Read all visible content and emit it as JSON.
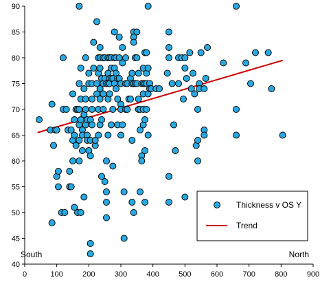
{
  "chart_data": {
    "type": "scatter",
    "title": "",
    "xlabel": "",
    "ylabel": "",
    "xlim": [
      0,
      900
    ],
    "ylim": [
      40,
      90
    ],
    "x_ticks": [
      0,
      100,
      200,
      300,
      400,
      500,
      600,
      700,
      800,
      900
    ],
    "y_ticks": [
      40,
      45,
      50,
      55,
      60,
      65,
      70,
      75,
      80,
      85,
      90
    ],
    "grid": false,
    "legend_position": "bottom-right",
    "annotations": {
      "left": "South",
      "right": "North"
    },
    "colors": {
      "points": "#29a9e1",
      "point_edge": "#000000",
      "trend": "#cc0000"
    },
    "series": [
      {
        "name": "Thickness v OS Y",
        "kind": "scatter",
        "points": [
          [
            45,
            68
          ],
          [
            80,
            66
          ],
          [
            85,
            71
          ],
          [
            85,
            48
          ],
          [
            90,
            63
          ],
          [
            95,
            66
          ],
          [
            100,
            57
          ],
          [
            100,
            66
          ],
          [
            105,
            55
          ],
          [
            105,
            58
          ],
          [
            115,
            50
          ],
          [
            120,
            80
          ],
          [
            120,
            70
          ],
          [
            125,
            50
          ],
          [
            130,
            70
          ],
          [
            135,
            66
          ],
          [
            140,
            58
          ],
          [
            140,
            55
          ],
          [
            145,
            55
          ],
          [
            145,
            66
          ],
          [
            150,
            73
          ],
          [
            150,
            64
          ],
          [
            150,
            60
          ],
          [
            155,
            51
          ],
          [
            155,
            68
          ],
          [
            155,
            65
          ],
          [
            160,
            70
          ],
          [
            160,
            63
          ],
          [
            165,
            50
          ],
          [
            165,
            70
          ],
          [
            170,
            90
          ],
          [
            170,
            75
          ],
          [
            170,
            70
          ],
          [
            170,
            67
          ],
          [
            170,
            64
          ],
          [
            170,
            60
          ],
          [
            175,
            78
          ],
          [
            175,
            72
          ],
          [
            175,
            68
          ],
          [
            175,
            50
          ],
          [
            180,
            66
          ],
          [
            180,
            65
          ],
          [
            180,
            62
          ],
          [
            185,
            74
          ],
          [
            185,
            69
          ],
          [
            185,
            53
          ],
          [
            190,
            80
          ],
          [
            190,
            72
          ],
          [
            190,
            70
          ],
          [
            190,
            67
          ],
          [
            195,
            68
          ],
          [
            195,
            65
          ],
          [
            195,
            64
          ],
          [
            200,
            77
          ],
          [
            200,
            75
          ],
          [
            200,
            62
          ],
          [
            205,
            68
          ],
          [
            205,
            64
          ],
          [
            205,
            61
          ],
          [
            205,
            44
          ],
          [
            205,
            42
          ],
          [
            210,
            75
          ],
          [
            210,
            72
          ],
          [
            210,
            70
          ],
          [
            210,
            67
          ],
          [
            215,
            83
          ],
          [
            215,
            78
          ],
          [
            220,
            63
          ],
          [
            220,
            64
          ],
          [
            225,
            87
          ],
          [
            225,
            75
          ],
          [
            225,
            73
          ],
          [
            230,
            80
          ],
          [
            230,
            77
          ],
          [
            230,
            70
          ],
          [
            230,
            65
          ],
          [
            235,
            82
          ],
          [
            235,
            80
          ],
          [
            235,
            78
          ],
          [
            235,
            74
          ],
          [
            235,
            72
          ],
          [
            235,
            67
          ],
          [
            240,
            76
          ],
          [
            240,
            68
          ],
          [
            240,
            57
          ],
          [
            245,
            80
          ],
          [
            245,
            75
          ],
          [
            245,
            73
          ],
          [
            245,
            70
          ],
          [
            250,
            80
          ],
          [
            250,
            76
          ],
          [
            250,
            56
          ],
          [
            255,
            75
          ],
          [
            255,
            60
          ],
          [
            255,
            54
          ],
          [
            255,
            52
          ],
          [
            255,
            49
          ],
          [
            260,
            80
          ],
          [
            260,
            77
          ],
          [
            260,
            75
          ],
          [
            260,
            72
          ],
          [
            260,
            65
          ],
          [
            265,
            80
          ],
          [
            265,
            76
          ],
          [
            265,
            75
          ],
          [
            265,
            73
          ],
          [
            270,
            80
          ],
          [
            270,
            78
          ],
          [
            270,
            76
          ],
          [
            270,
            67
          ],
          [
            275,
            76
          ],
          [
            275,
            70
          ],
          [
            275,
            59
          ],
          [
            280,
            85
          ],
          [
            280,
            80
          ],
          [
            280,
            78
          ],
          [
            280,
            75
          ],
          [
            285,
            80
          ],
          [
            285,
            77
          ],
          [
            285,
            74
          ],
          [
            290,
            76
          ],
          [
            290,
            72
          ],
          [
            290,
            67
          ],
          [
            295,
            84
          ],
          [
            295,
            80
          ],
          [
            295,
            76
          ],
          [
            300,
            75
          ],
          [
            300,
            71
          ],
          [
            300,
            70
          ],
          [
            300,
            65
          ],
          [
            305,
            82
          ],
          [
            305,
            79
          ],
          [
            305,
            67
          ],
          [
            310,
            54
          ],
          [
            310,
            45
          ],
          [
            315,
            80
          ],
          [
            315,
            75
          ],
          [
            315,
            70
          ],
          [
            320,
            75
          ],
          [
            320,
            70
          ],
          [
            325,
            72
          ],
          [
            330,
            76
          ],
          [
            330,
            72
          ],
          [
            335,
            77
          ],
          [
            335,
            75
          ],
          [
            335,
            64
          ],
          [
            335,
            52
          ],
          [
            340,
            85
          ],
          [
            340,
            84
          ],
          [
            340,
            83
          ],
          [
            340,
            75
          ],
          [
            340,
            50
          ],
          [
            345,
            80
          ],
          [
            345,
            75
          ],
          [
            350,
            85
          ],
          [
            350,
            80
          ],
          [
            350,
            75
          ],
          [
            355,
            77
          ],
          [
            355,
            72
          ],
          [
            355,
            70
          ],
          [
            360,
            70
          ],
          [
            360,
            66
          ],
          [
            360,
            54
          ],
          [
            365,
            75
          ],
          [
            365,
            61
          ],
          [
            365,
            60
          ],
          [
            370,
            78
          ],
          [
            370,
            75
          ],
          [
            370,
            73
          ],
          [
            370,
            70
          ],
          [
            370,
            67
          ],
          [
            375,
            81
          ],
          [
            375,
            75
          ],
          [
            375,
            68
          ],
          [
            375,
            62
          ],
          [
            375,
            52
          ],
          [
            380,
            81
          ],
          [
            380,
            77
          ],
          [
            380,
            75
          ],
          [
            380,
            70
          ],
          [
            385,
            90
          ],
          [
            385,
            78
          ],
          [
            385,
            73
          ],
          [
            385,
            65
          ],
          [
            390,
            75
          ],
          [
            390,
            74
          ],
          [
            395,
            74
          ],
          [
            410,
            74
          ],
          [
            420,
            74
          ],
          [
            445,
            77
          ],
          [
            450,
            85
          ],
          [
            450,
            82
          ],
          [
            450,
            80
          ],
          [
            450,
            57
          ],
          [
            450,
            52
          ],
          [
            460,
            75
          ],
          [
            465,
            67
          ],
          [
            470,
            62
          ],
          [
            480,
            75
          ],
          [
            480,
            80
          ],
          [
            490,
            80
          ],
          [
            495,
            72
          ],
          [
            500,
            80
          ],
          [
            500,
            78
          ],
          [
            500,
            53
          ],
          [
            505,
            76
          ],
          [
            515,
            81
          ],
          [
            520,
            74
          ],
          [
            525,
            77
          ],
          [
            530,
            73
          ],
          [
            535,
            63
          ],
          [
            540,
            70
          ],
          [
            540,
            64
          ],
          [
            540,
            60
          ],
          [
            545,
            75
          ],
          [
            545,
            74
          ],
          [
            550,
            81
          ],
          [
            560,
            74
          ],
          [
            560,
            66
          ],
          [
            560,
            65
          ],
          [
            565,
            76
          ],
          [
            570,
            82
          ],
          [
            620,
            79
          ],
          [
            660,
            90
          ],
          [
            660,
            70
          ],
          [
            660,
            65
          ],
          [
            690,
            79
          ],
          [
            705,
            75
          ],
          [
            720,
            81
          ],
          [
            760,
            81
          ],
          [
            770,
            74
          ],
          [
            805,
            65
          ]
        ]
      },
      {
        "name": "Trend",
        "kind": "line",
        "points": [
          [
            40,
            65.5
          ],
          [
            805,
            79.5
          ]
        ]
      }
    ]
  }
}
